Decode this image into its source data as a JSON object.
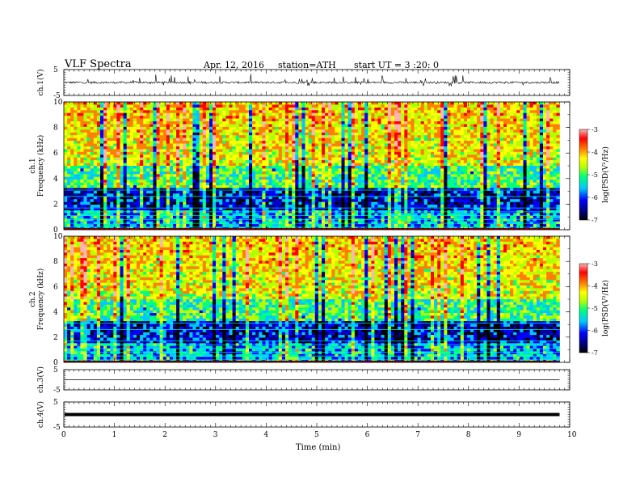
{
  "header": {
    "title": "VLF Spectra",
    "date": "Apr. 12, 2016",
    "station": "station=ATH",
    "start": "start UT = 3 :20: 0"
  },
  "colors": {
    "trace": "#000000",
    "colormap": [
      "#000000",
      "#000080",
      "#0000ff",
      "#00c8ff",
      "#00ff80",
      "#b4ff00",
      "#ffff00",
      "#ff8000",
      "#ff0000",
      "#ffb4b4"
    ]
  },
  "chart_data": [
    {
      "type": "line",
      "panel": "ch1-waveform",
      "ylabel": "ch.1(V)",
      "ylim": [
        -5,
        5
      ],
      "yticks": [
        "5",
        "-5"
      ],
      "x_extent_min": 9.8,
      "description_values": {
        "baseline": 0,
        "typical_spike": 2.5
      }
    },
    {
      "type": "heatmap",
      "panel": "ch1-spectrogram",
      "ylabel_line1": "ch.1",
      "ylabel_line2": "Frequency (kHz)",
      "ylim": [
        0,
        10
      ],
      "yticks": [
        "0",
        "2",
        "4",
        "6",
        "8",
        "10"
      ],
      "colorbar": {
        "label": "log(PSD(V²/Hz)",
        "range": [
          -7,
          -3
        ],
        "ticks": [
          "-3",
          "-4",
          "-5",
          "-6",
          "-7"
        ]
      }
    },
    {
      "type": "heatmap",
      "panel": "ch2-spectrogram",
      "ylabel_line1": "ch.2",
      "ylabel_line2": "Frequency (kHz)",
      "ylim": [
        0,
        10
      ],
      "yticks": [
        "0",
        "2",
        "4",
        "6",
        "8",
        "10"
      ],
      "colorbar": {
        "label": "log(PSD(V²/Hz)",
        "range": [
          -7,
          -3
        ],
        "ticks": [
          "-3",
          "-4",
          "-5",
          "-6",
          "-7"
        ]
      }
    },
    {
      "type": "line",
      "panel": "ch3-waveform",
      "ylabel": "ch.3(V)",
      "ylim": [
        -5,
        5
      ],
      "yticks": [
        "5",
        "-5"
      ],
      "level": 0
    },
    {
      "type": "line",
      "panel": "ch4-waveform",
      "ylabel": "ch.4(V)",
      "ylim": [
        -5,
        5
      ],
      "yticks": [
        "5",
        "-5"
      ],
      "level": 0
    }
  ],
  "xaxis": {
    "label": "Time (min)",
    "range": [
      0,
      10
    ],
    "ticks": [
      "0",
      "1",
      "2",
      "3",
      "4",
      "5",
      "6",
      "7",
      "8",
      "9",
      "10"
    ]
  }
}
